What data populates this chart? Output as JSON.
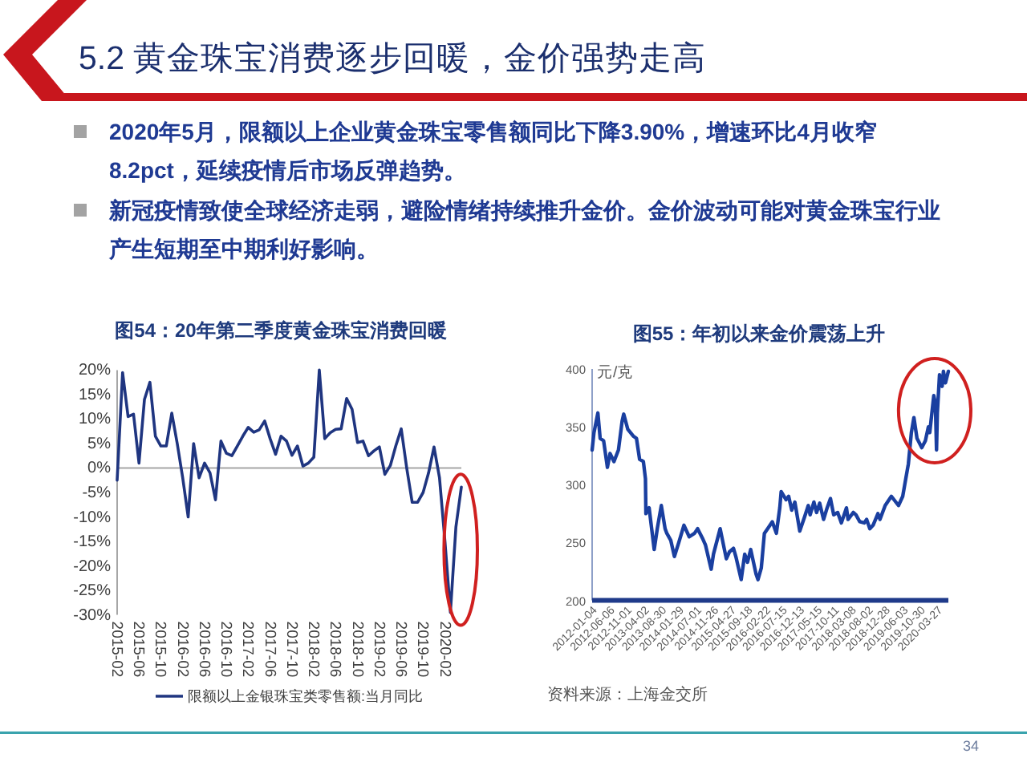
{
  "chart_data": [
    {
      "type": "other",
      "title": "5.2 黄金珠宝消费逐步回暖，金价强势走高",
      "annotations": [
        "2020年5月，限额以上企业黄金珠宝零售额同比下降3.90%，增速环比4月收窄8.2pct，延续疫情后市场反弹趋势。",
        "新冠疫情致使全球经济走弱，避险情绪持续推升金价。金价波动可能对黄金珠宝行业产生短期至中期利好影响。",
        "34"
      ]
    },
    {
      "type": "line",
      "title": "图54：20年第二季度黄金珠宝消费回暖",
      "categories": [
        "2015-02",
        null,
        null,
        null,
        "2015-06",
        null,
        null,
        null,
        "2015-10",
        null,
        null,
        null,
        "2016-02",
        null,
        null,
        null,
        "2016-06",
        null,
        null,
        null,
        "2016-10",
        null,
        null,
        null,
        "2017-02",
        null,
        null,
        null,
        "2017-06",
        null,
        null,
        null,
        "2017-10",
        null,
        null,
        null,
        "2018-02",
        null,
        null,
        null,
        "2018-06",
        null,
        null,
        null,
        "2018-10",
        null,
        null,
        null,
        "2019-02",
        null,
        null,
        null,
        "2019-06",
        null,
        null,
        null,
        "2019-10",
        null,
        null,
        null,
        "2020-02",
        null,
        null,
        null
      ],
      "series": [
        {
          "name": "限额以上金银珠宝类零售额:当月同比",
          "color": "#1f3580",
          "values": [
            -2.5,
            19.5,
            10.5,
            11,
            1,
            14,
            17.5,
            6.5,
            4.5,
            4.5,
            11.2,
            5,
            -2,
            -10,
            5,
            -2,
            1,
            -1,
            -6.5,
            5.5,
            3,
            2.5,
            4.5,
            6.5,
            8.3,
            7.3,
            7.8,
            9.6,
            6,
            2.8,
            6.5,
            5.5,
            2.6,
            4.5,
            0.4,
            1,
            2.2,
            20,
            6,
            7.2,
            7.9,
            8,
            14.2,
            12,
            5.2,
            5.5,
            2.5,
            3.5,
            4.3,
            -1.3,
            0.5,
            4.5,
            8,
            0,
            -7,
            -7,
            -5,
            -1,
            4.3,
            -2,
            -15,
            -29.5,
            -12.1,
            -3.9
          ]
        }
      ],
      "ylim": [
        -30,
        20
      ],
      "yticks": [
        {
          "value": -30,
          "label": "-30%"
        },
        {
          "value": -25,
          "label": "-25%"
        },
        {
          "value": -20,
          "label": "-20%"
        },
        {
          "value": -15,
          "label": "-15%"
        },
        {
          "value": -10,
          "label": "-10%"
        },
        {
          "value": -5,
          "label": "-5%"
        },
        {
          "value": 0,
          "label": "0%"
        },
        {
          "value": 5,
          "label": "5%"
        },
        {
          "value": 10,
          "label": "10%"
        },
        {
          "value": 15,
          "label": "15%"
        },
        {
          "value": 20,
          "label": "20%"
        }
      ],
      "legend": "bottom"
    },
    {
      "type": "line",
      "title": "图55：年初以来金价震荡上升",
      "ylabel": "元/克",
      "x": [
        "2012-01-04",
        "2012-01-20",
        "2012-02-23",
        "2012-03-14",
        "2012-04-13",
        "2012-05-16",
        "2012-06-08",
        "2012-07-12",
        "2012-08-20",
        "2012-09-21",
        "2012-10-05",
        "2012-11-09",
        "2012-12-27",
        "2013-01-24",
        "2013-02-20",
        "2013-03-25",
        "2013-04-12",
        "2013-04-16",
        "2013-05-14",
        "2013-06-27",
        "2013-07-24",
        "2013-08-28",
        "2013-09-30",
        "2013-10-15",
        "2013-11-18",
        "2013-12-20",
        "2014-01-27",
        "2014-03-13",
        "2014-04-28",
        "2014-06-13",
        "2014-07-10",
        "2014-08-20",
        "2014-09-16",
        "2014-11-05",
        "2014-11-25",
        "2015-01-22",
        "2015-02-26",
        "2015-03-17",
        "2015-04-13",
        "2015-05-18",
        "2015-06-10",
        "2015-07-24",
        "2015-08-24",
        "2015-09-17",
        "2015-10-15",
        "2015-11-30",
        "2015-12-17",
        "2016-01-15",
        "2016-02-11",
        "2016-03-10",
        "2016-04-20",
        "2016-05-25",
        "2016-06-24",
        "2016-07-06",
        "2016-08-18",
        "2016-09-09",
        "2016-10-06",
        "2016-11-02",
        "2016-12-15",
        "2017-01-25",
        "2017-02-27",
        "2017-03-15",
        "2017-04-17",
        "2017-05-10",
        "2017-06-06",
        "2017-07-10",
        "2017-08-10",
        "2017-09-08",
        "2017-10-06",
        "2017-11-10",
        "2017-12-12",
        "2018-01-25",
        "2018-02-08",
        "2018-03-26",
        "2018-04-18",
        "2018-05-21",
        "2018-06-29",
        "2018-07-20",
        "2018-08-16",
        "2018-09-14",
        "2018-10-26",
        "2018-11-13",
        "2018-12-28",
        "2019-02-20",
        "2019-04-23",
        "2019-05-30",
        "2019-06-25",
        "2019-07-18",
        "2019-08-13",
        "2019-09-04",
        "2019-10-01",
        "2019-11-12",
        "2019-12-13",
        "2020-01-08",
        "2020-01-20",
        "2020-02-24",
        "2020-03-09",
        "2020-03-19",
        "2020-03-26",
        "2020-04-14",
        "2020-05-07",
        "2020-05-18",
        "2020-06-05",
        "2020-06-30"
      ],
      "values": [
        330,
        345,
        362,
        340,
        338,
        315,
        327,
        320,
        330,
        355,
        361,
        348,
        342,
        340,
        322,
        320,
        305,
        275,
        280,
        244,
        262,
        282,
        262,
        258,
        252,
        238,
        250,
        265,
        255,
        258,
        262,
        254,
        248,
        227,
        240,
        262,
        245,
        236,
        242,
        245,
        237,
        218,
        240,
        233,
        244,
        223,
        218,
        228,
        258,
        262,
        268,
        258,
        280,
        294,
        287,
        290,
        278,
        285,
        260,
        272,
        282,
        274,
        285,
        276,
        284,
        270,
        280,
        288,
        274,
        276,
        267,
        280,
        270,
        276,
        274,
        268,
        267,
        270,
        262,
        265,
        275,
        270,
        282,
        290,
        282,
        290,
        305,
        318,
        345,
        358,
        340,
        332,
        338,
        350,
        345,
        377,
        370,
        330,
        362,
        395,
        385,
        398,
        388,
        398
      ],
      "color": "#1a3fa0",
      "xlim": [
        "2012-01-04",
        "2020-06-30"
      ],
      "xticks": [
        "2012-01-04",
        "2012-06-06",
        "2012-11-01",
        "2013-04-02",
        "2013-08-30",
        "2014-01-29",
        "2014-07-01",
        "2014-11-26",
        "2015-04-27",
        "2015-09-18",
        "2016-02-22",
        "2016-07-15",
        "2016-12-13",
        "2017-05-15",
        "2017-10-11",
        "2018-03-08",
        "2018-08-02",
        "2018-12-28",
        "2019-06-03",
        "2019-10-30",
        "2020-03-27"
      ],
      "ylim": [
        200,
        400
      ],
      "yticks": [
        200,
        250,
        300,
        350,
        400
      ],
      "annotations": [
        "资料来源：上海金交所"
      ]
    }
  ]
}
